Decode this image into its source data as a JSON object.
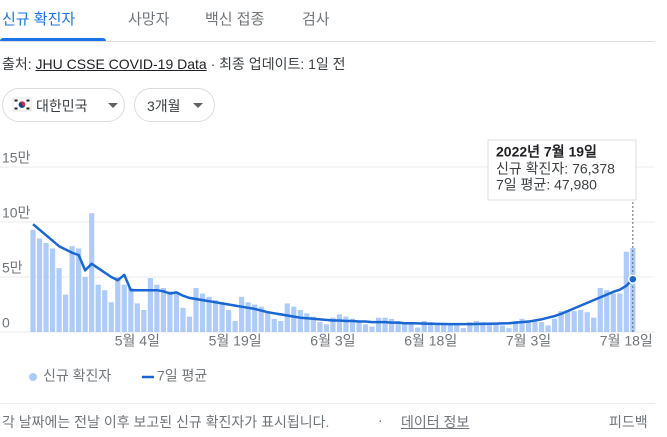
{
  "tabs": {
    "items": [
      "신규 확진자",
      "사망자",
      "백신 접종",
      "검사"
    ],
    "active": 0
  },
  "source": {
    "prefix": "출처:",
    "link": "JHU CSSE COVID-19 Data",
    "updated": "· 최종 업데이트: 1일 전"
  },
  "filters": [
    "대한민국",
    "3개월"
  ],
  "tooltip": {
    "title": "2022년 7월 19일",
    "lines": [
      "신규 확진자: 76,378",
      "7일 평균: 47,980"
    ]
  },
  "footer": {
    "note": "각 날짜에는 전날 이후 보고된 신규 확진자가 표시됩니다.",
    "link": "데이터 정보",
    "feedback": "피드백"
  },
  "chart_data": {
    "type": "bar-line",
    "categories": [
      null,
      null,
      null,
      null,
      null,
      null,
      null,
      null,
      null,
      null,
      null,
      null,
      null,
      null,
      null,
      null,
      "5월 4일",
      null,
      null,
      null,
      null,
      null,
      null,
      null,
      null,
      null,
      null,
      null,
      null,
      null,
      null,
      "5월 19일",
      null,
      null,
      null,
      null,
      null,
      null,
      null,
      null,
      null,
      null,
      null,
      null,
      null,
      null,
      "6월 3일",
      null,
      null,
      null,
      null,
      null,
      null,
      null,
      null,
      null,
      null,
      null,
      null,
      null,
      null,
      "6월 18일",
      null,
      null,
      null,
      null,
      null,
      null,
      null,
      null,
      null,
      null,
      null,
      null,
      null,
      null,
      "7월 3일",
      null,
      null,
      null,
      null,
      null,
      null,
      null,
      null,
      null,
      null,
      null,
      null,
      null,
      null,
      "7월 18일",
      null
    ],
    "series": [
      {
        "name": "신규 확진자",
        "type": "bar",
        "color": "#aecbfa",
        "values": [
          93000,
          85000,
          81000,
          76000,
          58000,
          34000,
          78000,
          76000,
          50000,
          108000,
          43000,
          38000,
          27000,
          50000,
          43000,
          40000,
          26000,
          20000,
          49000,
          43000,
          40000,
          37000,
          35000,
          22000,
          14000,
          40000,
          35000,
          32000,
          29000,
          27000,
          20000,
          10000,
          32000,
          27000,
          25000,
          23000,
          19000,
          12000,
          10000,
          26000,
          23000,
          20000,
          17000,
          14000,
          9000,
          7000,
          13000,
          16000,
          14000,
          12000,
          10000,
          7000,
          5000,
          13000,
          13000,
          12000,
          10000,
          9000,
          7000,
          4000,
          10000,
          9000,
          8000,
          7000,
          7000,
          6000,
          3500,
          9000,
          10000,
          9000,
          7500,
          7000,
          6000,
          3500,
          10000,
          12000,
          10000,
          10000,
          9000,
          6000,
          12000,
          19000,
          20000,
          19000,
          20000,
          18000,
          13000,
          40000,
          38000,
          35000,
          35000,
          73000,
          76378
        ]
      },
      {
        "name": "7일 평균",
        "type": "line",
        "color": "#1967d2",
        "values": [
          98000,
          93000,
          88000,
          83000,
          78000,
          75000,
          72000,
          70000,
          56000,
          62000,
          58000,
          54000,
          50000,
          47000,
          52000,
          38000,
          38000,
          38000,
          38000,
          38000,
          37000,
          35000,
          36000,
          33000,
          31000,
          30000,
          29000,
          28000,
          27000,
          26000,
          25000,
          24000,
          23000,
          22000,
          21000,
          19500,
          18000,
          17000,
          16000,
          15000,
          14000,
          13000,
          12500,
          12000,
          11500,
          11000,
          10500,
          10500,
          10000,
          10000,
          9500,
          9500,
          9000,
          9000,
          9000,
          8500,
          8500,
          8000,
          8000,
          7800,
          7600,
          7500,
          7400,
          7300,
          7200,
          7200,
          7200,
          7200,
          7300,
          7400,
          7500,
          7600,
          7800,
          8000,
          8500,
          9000,
          9500,
          10500,
          11500,
          13000,
          14500,
          16500,
          19000,
          21500,
          24000,
          26500,
          29000,
          31500,
          34000,
          36500,
          38500,
          42000,
          47980
        ]
      }
    ],
    "ylim": [
      0,
      150000
    ],
    "yticks": [
      0,
      {
        "value": 50000,
        "label": "5만"
      },
      {
        "value": 100000,
        "label": "10만"
      },
      {
        "value": 150000,
        "label": "15만"
      }
    ],
    "grid": true
  }
}
